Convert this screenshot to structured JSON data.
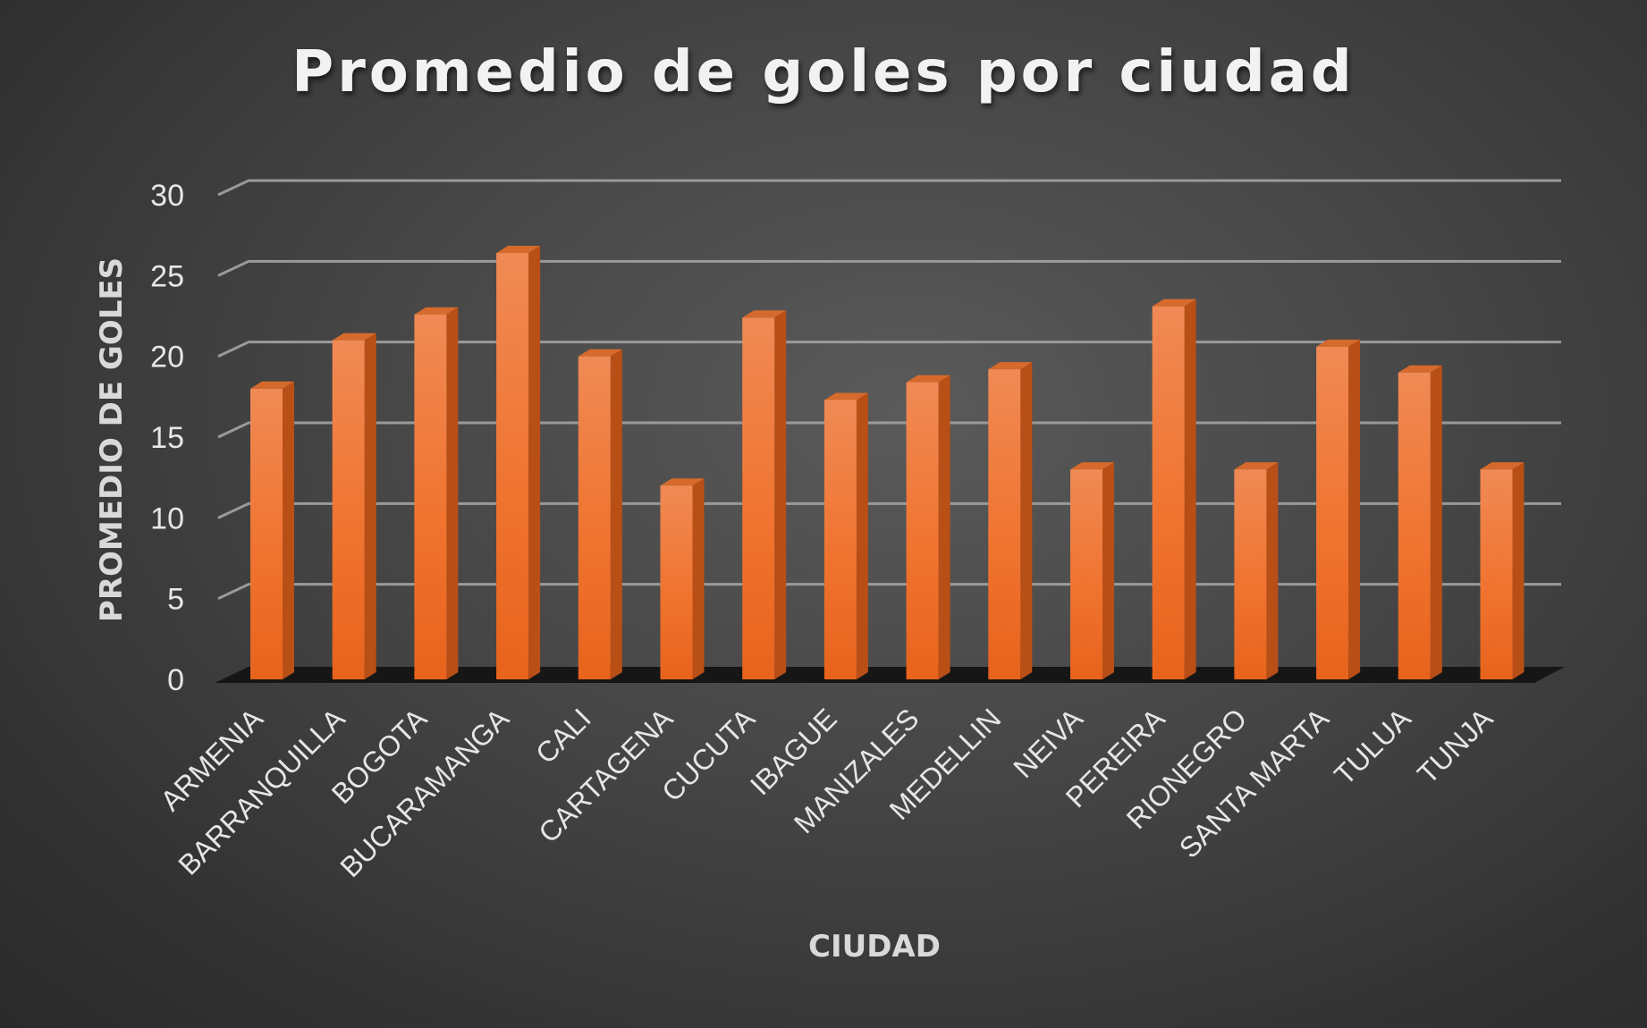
{
  "chart_data": {
    "type": "bar",
    "title": "Promedio de goles por ciudad",
    "xlabel": "CIUDAD",
    "ylabel": "PROMEDIO DE GOLES",
    "ylim": [
      0,
      30
    ],
    "yticks": [
      0,
      5,
      10,
      15,
      20,
      25,
      30
    ],
    "grid": true,
    "style": "3d-column",
    "colors": {
      "bar": "#f07a36",
      "bar_side": "#b84f17",
      "bar_top": "#d66a2c",
      "floor": "#161616"
    },
    "categories": [
      "ARMENIA",
      "BARRANQUILLA",
      "BOGOTA",
      "BUCARAMANGA",
      "CALI",
      "CARTAGENA",
      "CUCUTA",
      "IBAGUE",
      "MANIZALES",
      "MEDELLIN",
      "NEIVA",
      "PEREIRA",
      "RIONEGRO",
      "SANTA MARTA",
      "TULUA",
      "TUNJA"
    ],
    "values": [
      18,
      21,
      22.6,
      26.4,
      20,
      12,
      22.4,
      17.3,
      18.4,
      19.2,
      13,
      23.1,
      13,
      20.6,
      19,
      13
    ]
  }
}
